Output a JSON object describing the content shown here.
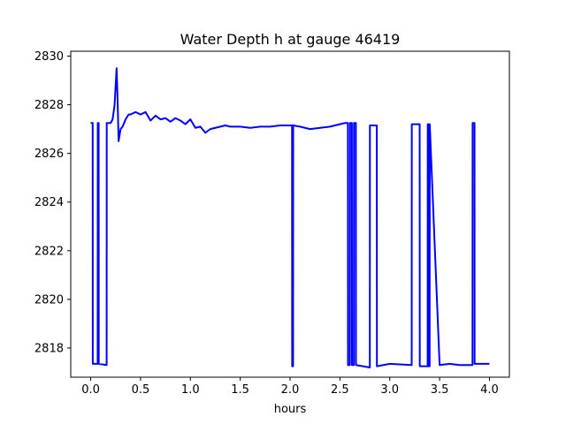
{
  "chart_data": {
    "type": "line",
    "title": "Water Depth h at gauge 46419",
    "xlabel": "hours",
    "ylabel": "",
    "xlim": [
      -0.2,
      4.2
    ],
    "ylim": [
      2816.8,
      2830.2
    ],
    "xticks": [
      0.0,
      0.5,
      1.0,
      1.5,
      2.0,
      2.5,
      3.0,
      3.5,
      4.0
    ],
    "xtick_labels": [
      "0.0",
      "0.5",
      "1.0",
      "1.5",
      "2.0",
      "2.5",
      "3.0",
      "3.5",
      "4.0"
    ],
    "yticks": [
      2818,
      2820,
      2822,
      2824,
      2826,
      2828,
      2830
    ],
    "ytick_labels": [
      "2818",
      "2820",
      "2822",
      "2824",
      "2826",
      "2828",
      "2830"
    ],
    "grid": false,
    "series": [
      {
        "color": "#0000ff",
        "x": [
          0.0,
          0.02,
          0.021,
          0.07,
          0.071,
          0.08,
          0.081,
          0.16,
          0.161,
          0.2,
          0.22,
          0.24,
          0.26,
          0.27,
          0.28,
          0.3,
          0.32,
          0.35,
          0.38,
          0.4,
          0.45,
          0.5,
          0.55,
          0.6,
          0.65,
          0.7,
          0.75,
          0.8,
          0.85,
          0.9,
          0.95,
          1.0,
          1.05,
          1.1,
          1.15,
          1.2,
          1.25,
          1.3,
          1.35,
          1.4,
          1.5,
          1.6,
          1.7,
          1.8,
          1.9,
          2.0,
          2.02,
          2.021,
          2.03,
          2.031,
          2.1,
          2.2,
          2.3,
          2.4,
          2.5,
          2.55,
          2.58,
          2.581,
          2.6,
          2.601,
          2.62,
          2.621,
          2.64,
          2.641,
          2.66,
          2.661,
          2.8,
          2.801,
          2.87,
          2.871,
          3.0,
          3.22,
          3.221,
          3.3,
          3.301,
          3.38,
          3.381,
          3.39,
          3.391,
          3.4,
          3.401,
          3.5,
          3.6,
          3.7,
          3.83,
          3.831,
          3.85,
          3.851,
          3.9,
          4.0
        ],
        "y": [
          2827.25,
          2827.25,
          2817.35,
          2817.35,
          2827.25,
          2827.25,
          2817.35,
          2817.3,
          2827.25,
          2827.25,
          2827.4,
          2828.0,
          2829.5,
          2828.2,
          2826.5,
          2827.0,
          2827.1,
          2827.4,
          2827.6,
          2827.6,
          2827.7,
          2827.6,
          2827.7,
          2827.35,
          2827.55,
          2827.4,
          2827.45,
          2827.3,
          2827.45,
          2827.35,
          2827.2,
          2827.4,
          2827.05,
          2827.1,
          2826.85,
          2827.0,
          2827.05,
          2827.1,
          2827.15,
          2827.1,
          2827.1,
          2827.05,
          2827.1,
          2827.1,
          2827.15,
          2827.15,
          2827.15,
          2817.25,
          2817.25,
          2827.15,
          2827.1,
          2827.0,
          2827.05,
          2827.1,
          2827.2,
          2827.25,
          2827.25,
          2817.3,
          2817.3,
          2827.25,
          2827.25,
          2817.3,
          2817.3,
          2827.25,
          2827.25,
          2817.3,
          2817.2,
          2827.15,
          2827.15,
          2817.25,
          2817.35,
          2817.3,
          2827.2,
          2827.2,
          2817.25,
          2817.25,
          2827.2,
          2827.2,
          2817.25,
          2817.25,
          2827.2,
          2817.3,
          2817.35,
          2817.3,
          2817.3,
          2827.25,
          2827.25,
          2817.35,
          2817.35,
          2817.35
        ]
      }
    ]
  }
}
